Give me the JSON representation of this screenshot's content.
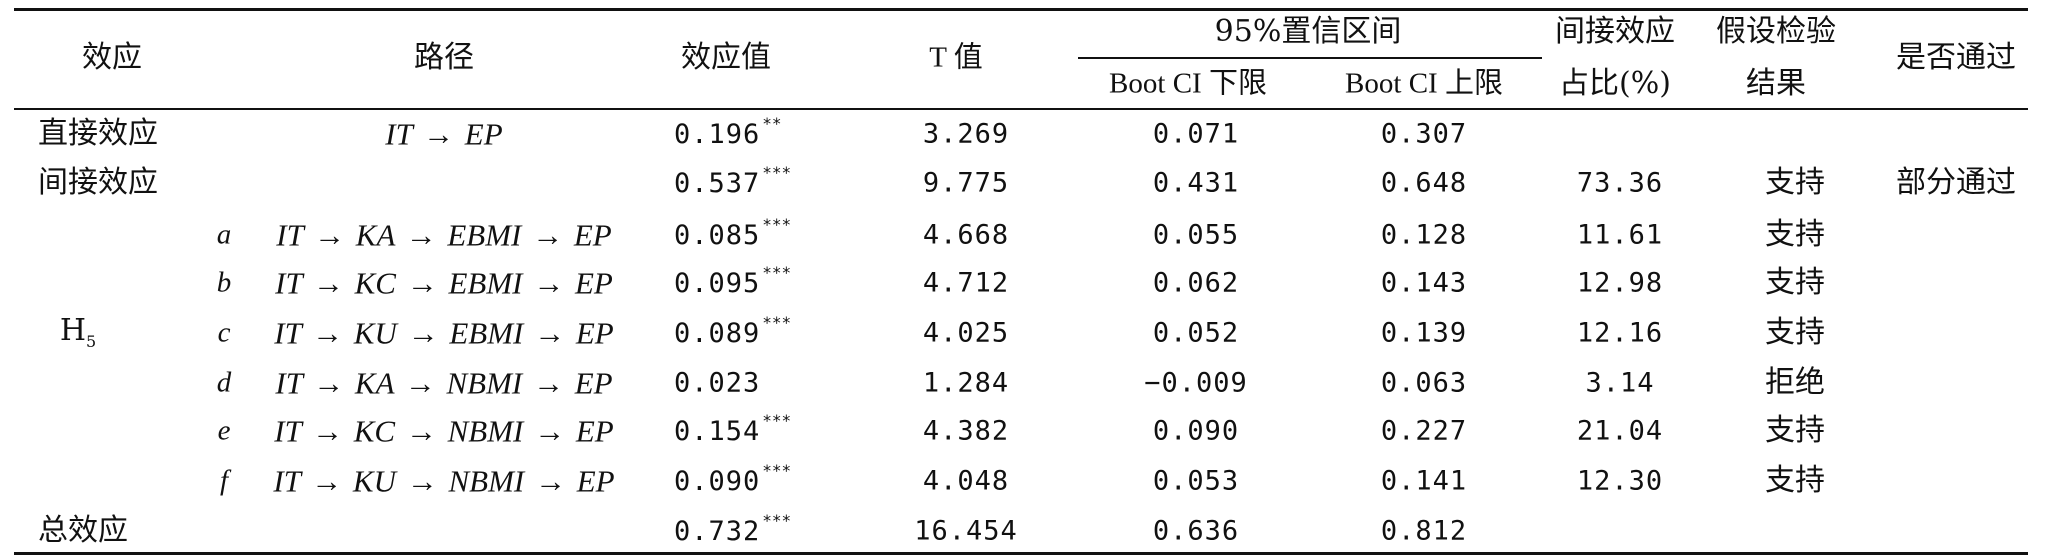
{
  "header": {
    "effect": "效应",
    "path": "路径",
    "effect_value": "效应值",
    "t_value": "T 值",
    "ci_group": "95%置信区间",
    "ci_lower": "Boot CI 下限",
    "ci_upper": "Boot CI 上限",
    "ratio_line1": "间接效应",
    "ratio_line2": "占比(%)",
    "hyp_line1": "假设检验",
    "hyp_line2": "结果",
    "pass": "是否通过"
  },
  "rows": [
    {
      "effect": "直接效应",
      "label": "",
      "path": "IT → EP",
      "value": "0.196",
      "sig": "**",
      "t": "3.269",
      "lower": "0.071",
      "upper": "0.307",
      "ratio": "",
      "result": "",
      "pass": ""
    },
    {
      "effect": "间接效应",
      "label": "",
      "path": "",
      "value": "0.537",
      "sig": "***",
      "t": "9.775",
      "lower": "0.431",
      "upper": "0.648",
      "ratio": "73.36",
      "result": "支持",
      "pass": "部分通过"
    },
    {
      "effect": "",
      "label": "a",
      "path": "IT → KA → EBMI → EP",
      "value": "0.085",
      "sig": "***",
      "t": "4.668",
      "lower": "0.055",
      "upper": "0.128",
      "ratio": "11.61",
      "result": "支持",
      "pass": ""
    },
    {
      "effect": "",
      "label": "b",
      "path": "IT → KC → EBMI → EP",
      "value": "0.095",
      "sig": "***",
      "t": "4.712",
      "lower": "0.062",
      "upper": "0.143",
      "ratio": "12.98",
      "result": "支持",
      "pass": ""
    },
    {
      "effect": "H",
      "effect_sub": "5",
      "label": "c",
      "path": "IT → KU → EBMI → EP",
      "value": "0.089",
      "sig": "***",
      "t": "4.025",
      "lower": "0.052",
      "upper": "0.139",
      "ratio": "12.16",
      "result": "支持",
      "pass": ""
    },
    {
      "effect": "",
      "label": "d",
      "path": "IT → KA → NBMI → EP",
      "value": "0.023",
      "sig": "",
      "t": "1.284",
      "lower": "−0.009",
      "upper": "0.063",
      "ratio": "3.14",
      "result": "拒绝",
      "pass": ""
    },
    {
      "effect": "",
      "label": "e",
      "path": "IT → KC → NBMI → EP",
      "value": "0.154",
      "sig": "***",
      "t": "4.382",
      "lower": "0.090",
      "upper": "0.227",
      "ratio": "21.04",
      "result": "支持",
      "pass": ""
    },
    {
      "effect": "",
      "label": "f",
      "path": "IT → KU → NBMI → EP",
      "value": "0.090",
      "sig": "***",
      "t": "4.048",
      "lower": "0.053",
      "upper": "0.141",
      "ratio": "12.30",
      "result": "支持",
      "pass": ""
    },
    {
      "effect": "总效应",
      "label": "",
      "path": "",
      "value": "0.732",
      "sig": "***",
      "t": "16.454",
      "lower": "0.636",
      "upper": "0.812",
      "ratio": "",
      "result": "",
      "pass": ""
    }
  ]
}
